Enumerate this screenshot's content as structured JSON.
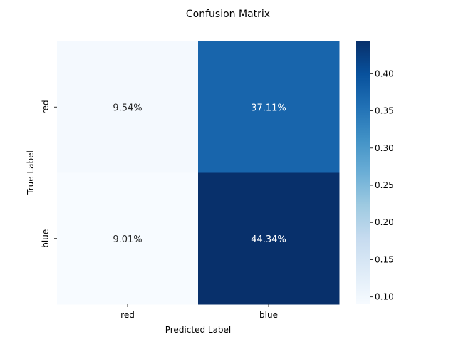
{
  "chart_data": {
    "type": "heatmap",
    "title": "Confusion Matrix",
    "xlabel": "Predicted Label",
    "ylabel": "True Label",
    "x_categories": [
      "red",
      "blue"
    ],
    "y_categories": [
      "red",
      "blue"
    ],
    "values": [
      [
        0.0954,
        0.3711
      ],
      [
        0.0901,
        0.4434
      ]
    ],
    "annotations": [
      [
        "9.54%",
        "37.11%"
      ],
      [
        "9.01%",
        "44.34%"
      ]
    ],
    "colormap": "Blues",
    "colorbar": {
      "range": [
        0.0901,
        0.4434
      ],
      "ticks": [
        0.1,
        0.15,
        0.2,
        0.25,
        0.3,
        0.35,
        0.4
      ],
      "tick_labels": [
        "0.10",
        "0.15",
        "0.20",
        "0.25",
        "0.30",
        "0.35",
        "0.40"
      ]
    }
  }
}
